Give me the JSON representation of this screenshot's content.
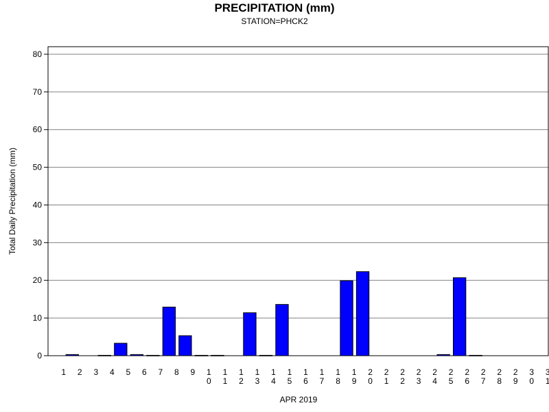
{
  "chart_data": {
    "type": "bar",
    "title": "PRECIPITATION (mm)",
    "subtitle": "STATION=PHCK2",
    "xlabel": "APR 2019",
    "ylabel": "Total Daily Precipitation (mm)",
    "ylim": [
      0,
      82
    ],
    "yticks": [
      0,
      10,
      20,
      30,
      40,
      50,
      60,
      70,
      80
    ],
    "grid": true,
    "legend": "none",
    "bar_color": "#0000ff",
    "categories": [
      "1",
      "2",
      "3",
      "4",
      "5",
      "6",
      "7",
      "8",
      "9",
      "10",
      "11",
      "12",
      "13",
      "14",
      "15",
      "16",
      "17",
      "18",
      "19",
      "20",
      "21",
      "22",
      "23",
      "24",
      "25",
      "26",
      "27",
      "28",
      "29",
      "30",
      "31"
    ],
    "values": [
      null,
      0.3,
      null,
      0.1,
      3.3,
      0.3,
      0.1,
      12.9,
      5.3,
      0.1,
      0.1,
      null,
      11.4,
      0.1,
      13.6,
      null,
      null,
      null,
      19.9,
      22.3,
      null,
      null,
      null,
      null,
      0.3,
      20.7,
      0.1,
      null,
      null,
      null,
      null
    ]
  }
}
